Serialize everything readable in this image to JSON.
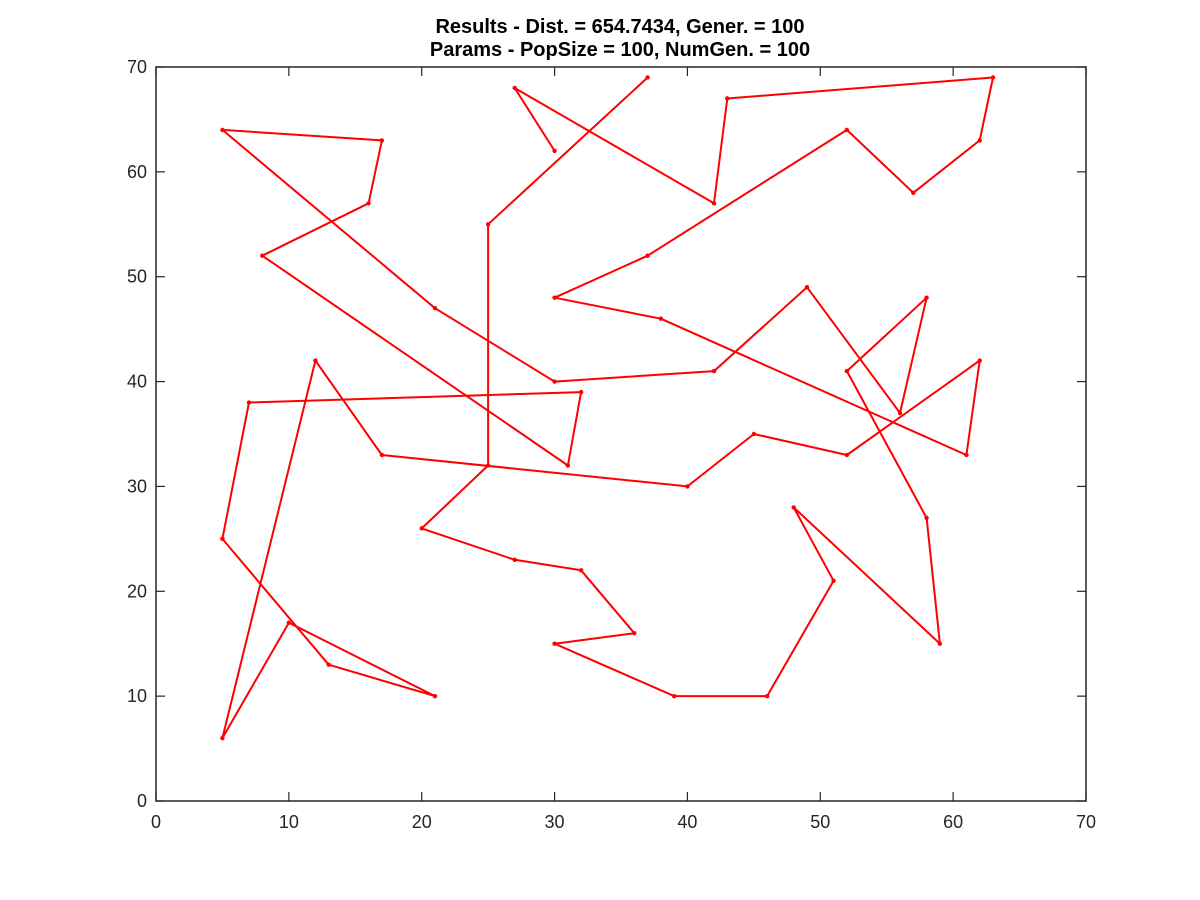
{
  "chart_data": {
    "type": "line",
    "title": "Results - Dist. = 654.7434, Gener. = 100",
    "subtitle": "Params - PopSize = 100, NumGen. = 100",
    "xlabel": "",
    "ylabel": "",
    "xlim": [
      0,
      70
    ],
    "ylim": [
      0,
      70
    ],
    "xticks": [
      "0",
      "10",
      "20",
      "30",
      "40",
      "50",
      "60",
      "70"
    ],
    "yticks": [
      "0",
      "10",
      "20",
      "30",
      "40",
      "50",
      "60",
      "70"
    ],
    "grid": false,
    "color": "#ff0000",
    "series": [
      {
        "x": [
          37,
          25,
          25,
          20,
          27,
          32,
          36,
          30,
          39,
          46,
          51,
          48,
          59,
          58,
          52,
          58,
          56,
          49,
          42,
          30,
          21,
          5,
          17,
          16,
          8,
          31,
          32,
          7,
          5,
          13,
          21,
          10,
          5,
          12,
          17,
          40,
          45,
          52,
          62,
          61,
          38,
          30,
          37,
          52,
          57,
          62,
          63,
          43,
          42,
          27,
          30
        ],
        "y": [
          69,
          55,
          32,
          26,
          23,
          22,
          16,
          15,
          10,
          10,
          21,
          28,
          15,
          27,
          41,
          48,
          37,
          49,
          41,
          40,
          47,
          64,
          63,
          57,
          52,
          32,
          39,
          38,
          25,
          13,
          10,
          17,
          6,
          42,
          33,
          30,
          35,
          33,
          42,
          33,
          46,
          48,
          52,
          64,
          58,
          63,
          69,
          67,
          57,
          68,
          62
        ]
      }
    ]
  }
}
